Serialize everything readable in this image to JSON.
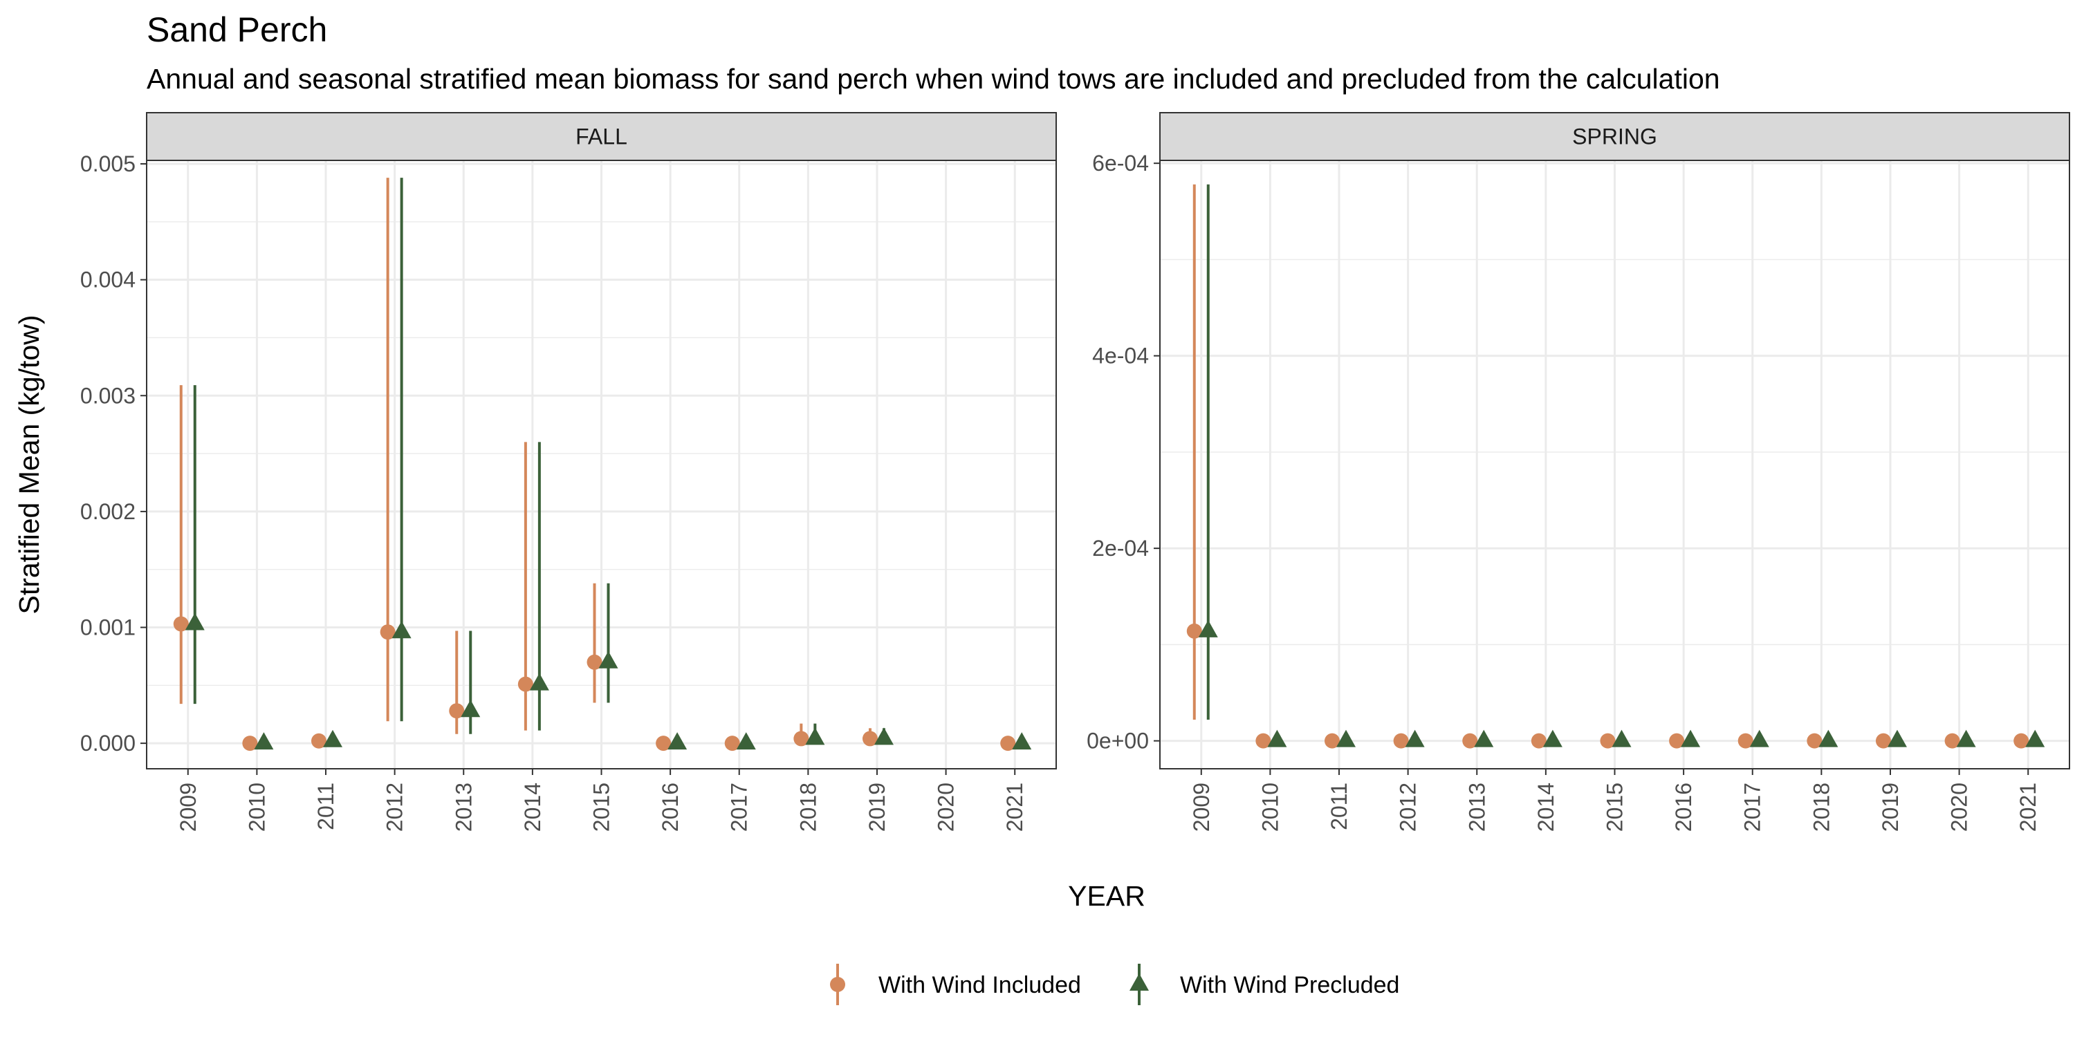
{
  "title": "Sand Perch",
  "subtitle": "Annual and seasonal stratified mean biomass for sand perch when wind tows are included and precluded from the calculation",
  "xlabel": "YEAR",
  "ylabel": "Stratified Mean (kg/tow)",
  "colors": {
    "included": "#d4875a",
    "precluded": "#3b6139",
    "strip_bg": "#d9d9d9",
    "grid": "#ebebeb"
  },
  "legend": {
    "placement": "bottom",
    "items": [
      {
        "label": "With Wind Included",
        "shape": "circle"
      },
      {
        "label": "With Wind Precluded",
        "shape": "triangle"
      }
    ]
  },
  "chart_data": [
    {
      "type": "scatter",
      "panel": "FALL",
      "categories": [
        "2009",
        "2010",
        "2011",
        "2012",
        "2013",
        "2014",
        "2015",
        "2016",
        "2017",
        "2018",
        "2019",
        "2020",
        "2021"
      ],
      "ylim": [
        -0.00022,
        0.00503
      ],
      "yticks": [
        0,
        0.001,
        0.002,
        0.003,
        0.004,
        0.005
      ],
      "ytick_labels": [
        "0.000",
        "0.001",
        "0.002",
        "0.003",
        "0.004",
        "0.005"
      ],
      "grid": true,
      "series": [
        {
          "name": "With Wind Included",
          "values": [
            0.00103,
            0.0,
            2e-05,
            0.00096,
            0.00028,
            0.00051,
            0.0007,
            0.0,
            0.0,
            4e-05,
            4e-05,
            null,
            0.0
          ],
          "lower": [
            0.00034,
            0.0,
            0.0,
            0.00019,
            8e-05,
            0.00011,
            0.00035,
            0.0,
            0.0,
            0.0,
            0.0,
            null,
            0.0
          ],
          "upper": [
            0.00309,
            0.0,
            2e-05,
            0.00488,
            0.00097,
            0.0026,
            0.00138,
            0.0,
            0.0,
            0.00017,
            0.00013,
            null,
            0.0
          ]
        },
        {
          "name": "With Wind Precluded",
          "values": [
            0.00103,
            0.0,
            2e-05,
            0.00096,
            0.00028,
            0.00051,
            0.0007,
            0.0,
            0.0,
            4e-05,
            4e-05,
            null,
            0.0
          ],
          "lower": [
            0.00034,
            0.0,
            0.0,
            0.00019,
            8e-05,
            0.00011,
            0.00035,
            0.0,
            0.0,
            0.0,
            0.0,
            null,
            0.0
          ],
          "upper": [
            0.00309,
            0.0,
            2e-05,
            0.00488,
            0.00097,
            0.0026,
            0.00138,
            0.0,
            0.0,
            0.00017,
            0.00013,
            null,
            0.0
          ]
        }
      ]
    },
    {
      "type": "scatter",
      "panel": "SPRING",
      "categories": [
        "2009",
        "2010",
        "2011",
        "2012",
        "2013",
        "2014",
        "2015",
        "2016",
        "2017",
        "2018",
        "2019",
        "2020",
        "2021"
      ],
      "ylim": [
        -2.9e-05,
        0.000603
      ],
      "yticks": [
        0,
        0.0002,
        0.0004,
        0.0006
      ],
      "ytick_labels": [
        "0e+00",
        "2e-04",
        "4e-04",
        "6e-04"
      ],
      "grid": true,
      "series": [
        {
          "name": "With Wind Included",
          "values": [
            0.000114,
            0,
            0,
            0,
            0,
            0,
            0,
            0,
            0,
            0,
            0,
            0,
            0
          ],
          "lower": [
            2.2e-05,
            0,
            0,
            0,
            0,
            0,
            0,
            0,
            0,
            0,
            0,
            0,
            0
          ],
          "upper": [
            0.000578,
            0,
            0,
            0,
            0,
            0,
            0,
            0,
            0,
            0,
            0,
            0,
            0
          ]
        },
        {
          "name": "With Wind Precluded",
          "values": [
            0.000114,
            0,
            0,
            0,
            0,
            0,
            0,
            0,
            0,
            0,
            0,
            0,
            0
          ],
          "lower": [
            2.2e-05,
            0,
            0,
            0,
            0,
            0,
            0,
            0,
            0,
            0,
            0,
            0,
            0
          ],
          "upper": [
            0.000578,
            0,
            0,
            0,
            0,
            0,
            0,
            0,
            0,
            0,
            0,
            0,
            0
          ]
        }
      ]
    }
  ]
}
